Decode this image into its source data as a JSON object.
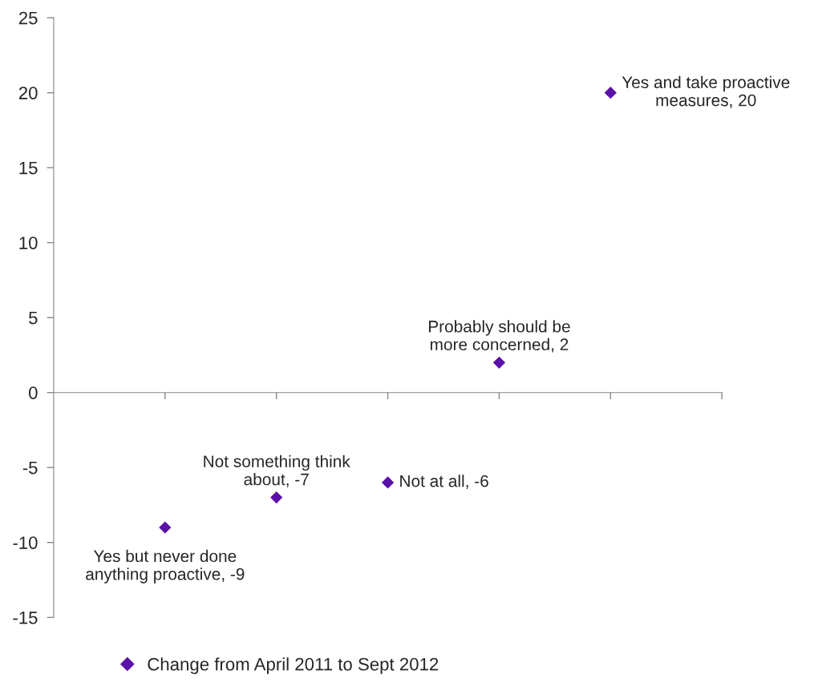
{
  "chart_data": {
    "type": "scatter",
    "categories": [
      null,
      null,
      null,
      null,
      null
    ],
    "series": [
      {
        "name": "Change from April 2011 to Sept 2012",
        "color": "#5b10a8",
        "values": [
          -9,
          -7,
          -6,
          2,
          20
        ],
        "value_labels": [
          "Yes but never done\nanything proactive, -9",
          "Not something think\nabout, -7",
          "Not at all, -6",
          "Probably should be\nmore concerned, 2",
          "Yes and take proactive\nmeasures, 20"
        ]
      }
    ],
    "ylim": [
      -15,
      25
    ],
    "yticks": [
      -15,
      -10,
      -5,
      0,
      5,
      10,
      15,
      20,
      25
    ],
    "marker": "diamond",
    "legend": "bottom",
    "tick_labels": "y"
  }
}
